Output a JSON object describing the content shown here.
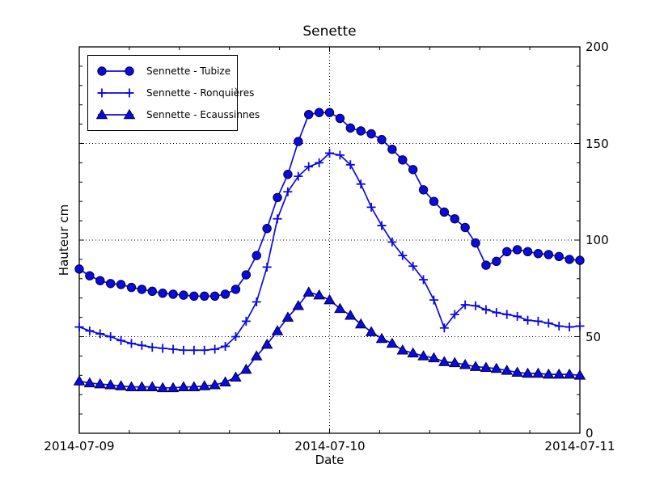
{
  "title": "Senette",
  "colors": {
    "series_blue": "#0b0bdd",
    "marker_edge": "#000040",
    "axis_black": "#000000",
    "background": "#ffffff"
  },
  "chart_data": {
    "type": "line",
    "title": "Senette",
    "xlabel": "Date",
    "ylabel": "Hauteur cm",
    "ylim": [
      0,
      200
    ],
    "y_major_step": 50,
    "y_minor_step": 10,
    "hours_span": 48,
    "x_major_hours": [
      0,
      24,
      48
    ],
    "x_minor_per_day": 5,
    "grid_y": [
      50,
      100,
      150
    ],
    "grid_x_hours": [
      24
    ],
    "grid_style": "dotted",
    "legend_position": "upper left",
    "x_tick_labels": [
      "2014-07-09",
      "2014-07-10",
      "2014-07-11"
    ],
    "y_tick_labels": [
      "0",
      "50",
      "100",
      "150",
      "200"
    ],
    "x_start": "2014-07-09 00:00",
    "x_step_hours": 1,
    "series": [
      {
        "name": "Sennette - Tubize",
        "marker": "circle",
        "values": [
          85,
          81.5,
          79,
          77.5,
          77,
          75.5,
          74.5,
          73.5,
          72.5,
          72,
          71.5,
          71,
          71,
          71,
          72,
          74.5,
          82,
          92,
          106,
          122,
          134,
          151,
          165,
          166,
          166,
          163,
          158,
          156.5,
          155,
          152,
          147,
          141.5,
          136.5,
          126,
          120,
          114.5,
          111,
          106.5,
          98.5,
          87,
          89,
          94,
          95,
          94,
          93,
          92.5,
          91.5,
          90,
          89.5
        ]
      },
      {
        "name": "Sennette - Ronquières",
        "marker": "plus",
        "values": [
          55,
          53,
          51.5,
          50,
          48,
          46.5,
          45.5,
          44.5,
          44,
          43.5,
          43,
          43,
          43,
          43.5,
          45,
          50,
          58,
          68,
          86,
          111,
          125,
          133,
          138,
          140,
          145,
          144,
          139,
          129,
          117,
          107.5,
          99,
          92,
          86.5,
          79.5,
          69,
          54.5,
          61.5,
          66.5,
          66,
          64,
          62.5,
          61.5,
          60.5,
          58.5,
          58,
          57,
          55.5,
          55,
          55.5
        ]
      },
      {
        "name": "Sennette - Ecaussinnes",
        "marker": "triangle",
        "values": [
          27,
          26,
          25.5,
          25,
          24.5,
          24,
          24,
          24,
          23.5,
          23.5,
          24,
          24,
          24.5,
          25,
          26.5,
          29,
          33,
          40,
          46,
          53,
          60,
          66,
          73,
          71.5,
          69,
          64.5,
          61,
          56.5,
          52.5,
          49,
          46.5,
          43,
          41.5,
          40,
          39,
          37,
          36.5,
          35.5,
          34.5,
          34,
          33.5,
          32.5,
          31.5,
          31,
          31,
          30.5,
          30.5,
          30.5,
          30
        ]
      }
    ]
  }
}
